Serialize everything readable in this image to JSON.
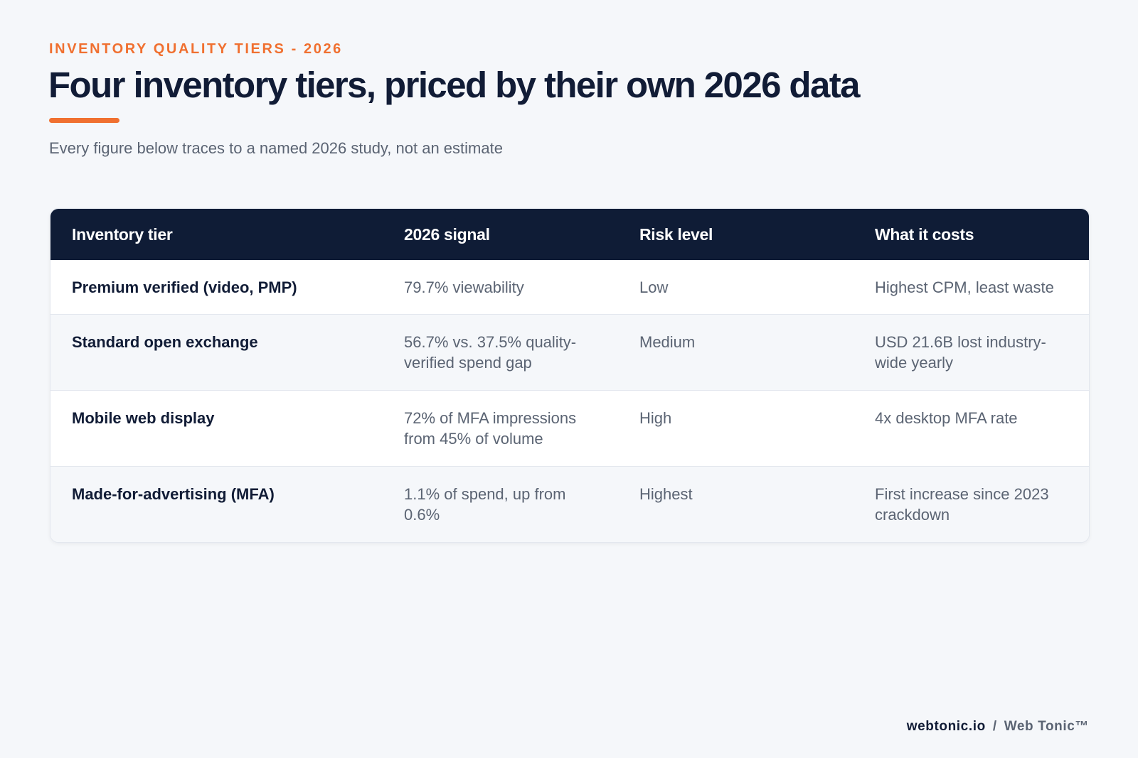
{
  "header": {
    "eyebrow": "INVENTORY QUALITY TIERS - 2026",
    "title": "Four inventory tiers, priced by their own 2026 data",
    "subtitle": "Every figure below traces to a named 2026 study, not an estimate",
    "accent_color": "#f07030"
  },
  "table": {
    "columns": [
      "Inventory tier",
      "2026 signal",
      "Risk level",
      "What it costs"
    ],
    "rows": [
      {
        "tier": "Premium verified (video, PMP)",
        "signal": "79.7% viewability",
        "risk": "Low",
        "cost": "Highest CPM, least waste"
      },
      {
        "tier": "Standard open exchange",
        "signal": "56.7% vs. 37.5% quality-verified spend gap",
        "risk": "Medium",
        "cost": "USD 21.6B lost industry-wide yearly"
      },
      {
        "tier": "Mobile web display",
        "signal": "72% of MFA impressions from 45% of volume",
        "risk": "High",
        "cost": "4x desktop MFA rate"
      },
      {
        "tier": "Made-for-advertising (MFA)",
        "signal": "1.1% of spend, up from 0.6%",
        "risk": "Highest",
        "cost": "First increase since 2023 crackdown"
      }
    ],
    "header_color": "#0f1c36"
  },
  "footer": {
    "site": "webtonic.io",
    "separator": "/",
    "brand": "Web Tonic™"
  }
}
